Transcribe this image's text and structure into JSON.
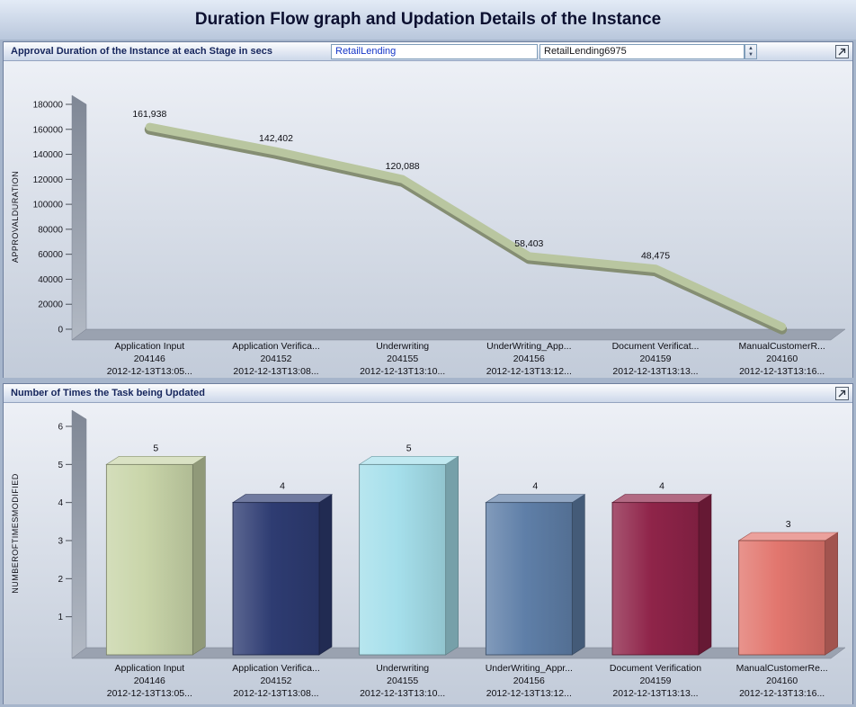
{
  "page_title": "Duration Flow graph and Updation Details of the Instance",
  "icons": {
    "spinner_up": "▲",
    "spinner_down": "▼"
  },
  "panel1": {
    "title": "Approval Duration of the Instance at each Stage in secs",
    "data_object": "RetailLending",
    "instance": "RetailLending6975"
  },
  "panel2": {
    "title": "Number of Times the Task being Updated"
  },
  "colors": {
    "line_sage": "#b9c6a0",
    "wall_gray": "#8a8f99",
    "header_text": "#15255c"
  },
  "chart_data": [
    {
      "type": "line",
      "title": "Approval Duration of the Instance at each Stage in secs",
      "ylabel": "APPROVALDURATION",
      "ylim": [
        0,
        180000
      ],
      "ytick_step": 20000,
      "grid": false,
      "legend": "none",
      "categories": [
        {
          "stage": "Application Input",
          "id": "204146",
          "timestamp": "2012-12-13T13:05..."
        },
        {
          "stage": "Application Verifica...",
          "id": "204152",
          "timestamp": "2012-12-13T13:08..."
        },
        {
          "stage": "Underwriting",
          "id": "204155",
          "timestamp": "2012-12-13T13:10..."
        },
        {
          "stage": "UnderWriting_App...",
          "id": "204156",
          "timestamp": "2012-12-13T13:12..."
        },
        {
          "stage": "Document Verificat...",
          "id": "204159",
          "timestamp": "2012-12-13T13:13..."
        },
        {
          "stage": "ManualCustomerR...",
          "id": "204160",
          "timestamp": "2012-12-13T13:16..."
        }
      ],
      "values": [
        161938,
        142402,
        120088,
        58403,
        48475,
        2000
      ],
      "value_labels": [
        "161,938",
        "142,402",
        "120,088",
        "58,403",
        "48,475",
        ""
      ],
      "line_color": "#b9c6a0"
    },
    {
      "type": "bar",
      "title": "Number of Times the Task being Updated",
      "ylabel": "NUMBEROFTIMESMODIFIED",
      "ylim": [
        0,
        6
      ],
      "ytick_step": 1,
      "grid": false,
      "legend": "none",
      "categories": [
        {
          "stage": "Application Input",
          "id": "204146",
          "timestamp": "2012-12-13T13:05..."
        },
        {
          "stage": "Application Verifica...",
          "id": "204152",
          "timestamp": "2012-12-13T13:08..."
        },
        {
          "stage": "Underwriting",
          "id": "204155",
          "timestamp": "2012-12-13T13:10..."
        },
        {
          "stage": "UnderWriting_Appr...",
          "id": "204156",
          "timestamp": "2012-12-13T13:12..."
        },
        {
          "stage": "Document Verification",
          "id": "204159",
          "timestamp": "2012-12-13T13:13..."
        },
        {
          "stage": "ManualCustomerRe...",
          "id": "204160",
          "timestamp": "2012-12-13T13:16..."
        }
      ],
      "values": [
        5,
        4,
        5,
        4,
        4,
        3
      ],
      "bar_colors": [
        "#c9d5a9",
        "#2e3c72",
        "#a5dfeb",
        "#5f7fa8",
        "#8f2449",
        "#e2766e"
      ]
    }
  ]
}
